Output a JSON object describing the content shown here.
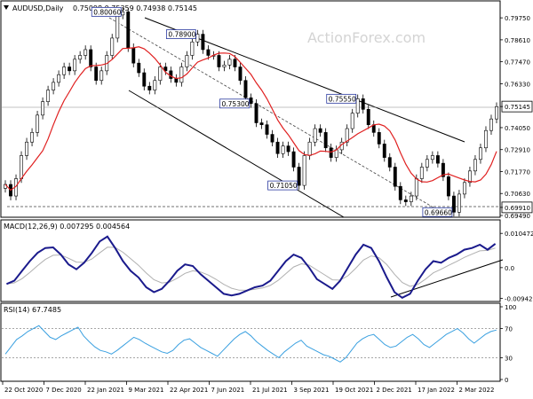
{
  "chart_data": [
    {
      "type": "candlestick",
      "header": {
        "symbol": "AUDUSD,Daily",
        "ohlc": "0.75098 0.75359 0.74938 0.75145"
      },
      "watermark": "ActionForex.com",
      "y_ticks": [
        "0.79750",
        "0.78610",
        "0.77470",
        "0.76330",
        "0.75145",
        "0.74050",
        "0.72910",
        "0.71770",
        "0.70630",
        "0.69910",
        "0.69490"
      ],
      "ylim": [
        0.6949,
        0.804
      ],
      "current_price": 0.75145,
      "support_line": 0.6991,
      "close_series": [
        0.711,
        0.705,
        0.714,
        0.726,
        0.733,
        0.738,
        0.747,
        0.754,
        0.76,
        0.764,
        0.768,
        0.772,
        0.77,
        0.776,
        0.778,
        0.781,
        0.772,
        0.765,
        0.77,
        0.778,
        0.787,
        0.799,
        0.8006,
        0.782,
        0.774,
        0.769,
        0.762,
        0.76,
        0.765,
        0.772,
        0.77,
        0.766,
        0.764,
        0.772,
        0.778,
        0.785,
        0.789,
        0.781,
        0.778,
        0.778,
        0.772,
        0.773,
        0.776,
        0.772,
        0.765,
        0.756,
        0.753,
        0.743,
        0.742,
        0.737,
        0.733,
        0.727,
        0.731,
        0.728,
        0.72,
        0.7105,
        0.726,
        0.733,
        0.74,
        0.738,
        0.73,
        0.725,
        0.729,
        0.733,
        0.74,
        0.748,
        0.7555,
        0.75,
        0.742,
        0.738,
        0.732,
        0.725,
        0.72,
        0.71,
        0.703,
        0.702,
        0.705,
        0.714,
        0.72,
        0.724,
        0.726,
        0.722,
        0.715,
        0.705,
        0.6966,
        0.706,
        0.712,
        0.718,
        0.724,
        0.73,
        0.739,
        0.745,
        0.7514
      ],
      "annotations": [
        {
          "label": "0.80060",
          "value": 0.8006
        },
        {
          "label": "0.78900",
          "value": 0.789
        },
        {
          "label": "0.75300",
          "value": 0.753
        },
        {
          "label": "0.75550",
          "value": 0.7555
        },
        {
          "label": "0.71050",
          "value": 0.7105
        },
        {
          "label": "0.69660",
          "value": 0.6966
        }
      ],
      "x_ticks": [
        "22 Oct 2020",
        "7 Dec 2020",
        "22 Jan 2021",
        "9 Mar 2021",
        "22 Apr 2021",
        "7 Jun 2021",
        "21 Jul 2021",
        "3 Sep 2021",
        "19 Oct 2021",
        "2 Dec 2021",
        "17 Jan 2022",
        "2 Mar 2022"
      ]
    },
    {
      "type": "line",
      "title": "MACD(12,26,9) 0.007295 0.004564",
      "y_ticks": [
        "0.010472",
        "0.0",
        "-0.009426"
      ],
      "ylim": [
        -0.0098,
        0.0108
      ],
      "macd": [
        -0.005,
        -0.004,
        -0.001,
        0.002,
        0.0045,
        0.006,
        0.0062,
        0.004,
        0.001,
        -0.0005,
        0.0015,
        0.0045,
        0.008,
        0.0095,
        0.006,
        0.002,
        -0.001,
        -0.003,
        -0.006,
        -0.0075,
        -0.0065,
        -0.004,
        -0.001,
        0.001,
        0.0005,
        -0.002,
        -0.004,
        -0.006,
        -0.008,
        -0.0085,
        -0.008,
        -0.007,
        -0.006,
        -0.0055,
        -0.004,
        -0.001,
        0.002,
        0.004,
        0.003,
        0.0,
        -0.0035,
        -0.005,
        -0.0065,
        -0.004,
        0.0,
        0.004,
        0.007,
        0.006,
        0.002,
        -0.003,
        -0.0075,
        -0.0092,
        -0.008,
        -0.004,
        -0.0005,
        0.002,
        0.0015,
        0.003,
        0.004,
        0.0055,
        0.006,
        0.007,
        0.0055,
        0.0073
      ]
    },
    {
      "type": "line",
      "title": "RSI(14) 67.7485",
      "y_ticks": [
        "100",
        "70",
        "30",
        "0"
      ],
      "ylim": [
        0,
        100
      ],
      "levels": [
        70,
        30
      ],
      "rsi": [
        35,
        45,
        55,
        60,
        66,
        70,
        74,
        66,
        58,
        55,
        60,
        64,
        68,
        72,
        60,
        52,
        45,
        40,
        38,
        35,
        40,
        46,
        52,
        58,
        55,
        50,
        46,
        42,
        38,
        36,
        40,
        48,
        54,
        56,
        50,
        44,
        40,
        36,
        32,
        40,
        48,
        56,
        62,
        66,
        60,
        52,
        46,
        40,
        35,
        30,
        38,
        44,
        50,
        54,
        46,
        42,
        38,
        34,
        32,
        28,
        24,
        30,
        40,
        50,
        56,
        60,
        62,
        55,
        48,
        44,
        46,
        52,
        58,
        62,
        56,
        48,
        44,
        50,
        56,
        62,
        66,
        70,
        64,
        56,
        50,
        56,
        62,
        66,
        68
      ]
    }
  ]
}
